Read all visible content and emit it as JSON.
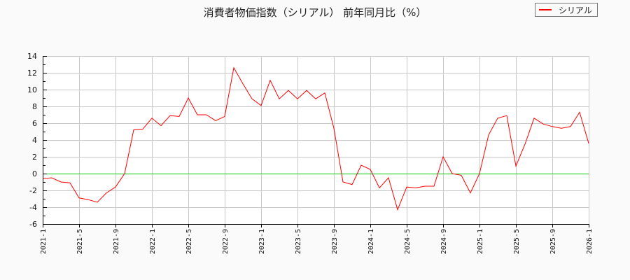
{
  "chart_data": {
    "type": "line",
    "title": "消費者物価指数（シリアル） 前年同月比（%）",
    "xlabel": "",
    "ylabel": "",
    "ylim": [
      -6,
      14
    ],
    "yticks": [
      -6,
      -4,
      -2,
      0,
      2,
      4,
      6,
      8,
      10,
      12,
      14
    ],
    "xtick_labels": [
      "2021-1",
      "2021-5",
      "2021-9",
      "2022-1",
      "2022-5",
      "2022-9",
      "2023-1",
      "2023-5",
      "2023-9",
      "2024-1",
      "2024-5",
      "2024-9",
      "2025-1",
      "2025-5",
      "2025-9",
      "2026-1"
    ],
    "grid": true,
    "legend_position": "top-right",
    "reference_line": {
      "y": 0,
      "color": "#00cc00"
    },
    "x": [
      "2021-1",
      "2021-2",
      "2021-3",
      "2021-4",
      "2021-5",
      "2021-6",
      "2021-7",
      "2021-8",
      "2021-9",
      "2021-10",
      "2021-11",
      "2021-12",
      "2022-1",
      "2022-2",
      "2022-3",
      "2022-4",
      "2022-5",
      "2022-6",
      "2022-7",
      "2022-8",
      "2022-9",
      "2022-10",
      "2022-11",
      "2022-12",
      "2023-1",
      "2023-2",
      "2023-3",
      "2023-4",
      "2023-5",
      "2023-6",
      "2023-7",
      "2023-8",
      "2023-9",
      "2023-10",
      "2023-11",
      "2023-12",
      "2024-1",
      "2024-2",
      "2024-3",
      "2024-4",
      "2024-5",
      "2024-6",
      "2024-7",
      "2024-8",
      "2024-9",
      "2024-10",
      "2024-11",
      "2024-12",
      "2025-1",
      "2025-2",
      "2025-3",
      "2025-4",
      "2025-5",
      "2025-6",
      "2025-7",
      "2025-8",
      "2025-9",
      "2025-10",
      "2025-11",
      "2025-12",
      "2026-1"
    ],
    "series": [
      {
        "name": "シリアル",
        "color": "#ff0000",
        "values": [
          -0.6,
          -0.5,
          -1.0,
          -1.1,
          -2.9,
          -3.1,
          -3.4,
          -2.3,
          -1.6,
          0.0,
          5.2,
          5.3,
          6.6,
          5.7,
          6.9,
          6.8,
          9.0,
          7.0,
          7.0,
          6.3,
          6.8,
          12.6,
          10.7,
          8.9,
          8.1,
          11.1,
          8.9,
          9.9,
          8.9,
          9.9,
          8.9,
          9.6,
          5.4,
          -1.0,
          -1.3,
          1.0,
          0.5,
          -1.7,
          -0.5,
          -4.3,
          -1.6,
          -1.7,
          -1.5,
          -1.5,
          2.0,
          0.0,
          -0.2,
          -2.3,
          0.0,
          4.6,
          6.6,
          6.9,
          0.9,
          3.5,
          6.6,
          5.9,
          5.6,
          5.4,
          5.6,
          7.3,
          3.6
        ]
      }
    ]
  },
  "colors": {
    "background": "#fafafa",
    "plot_background": "#ffffff",
    "grid": "#c8c8c8",
    "series": "#ff0000",
    "zero_line": "#00cc00",
    "axis": "#000000"
  }
}
